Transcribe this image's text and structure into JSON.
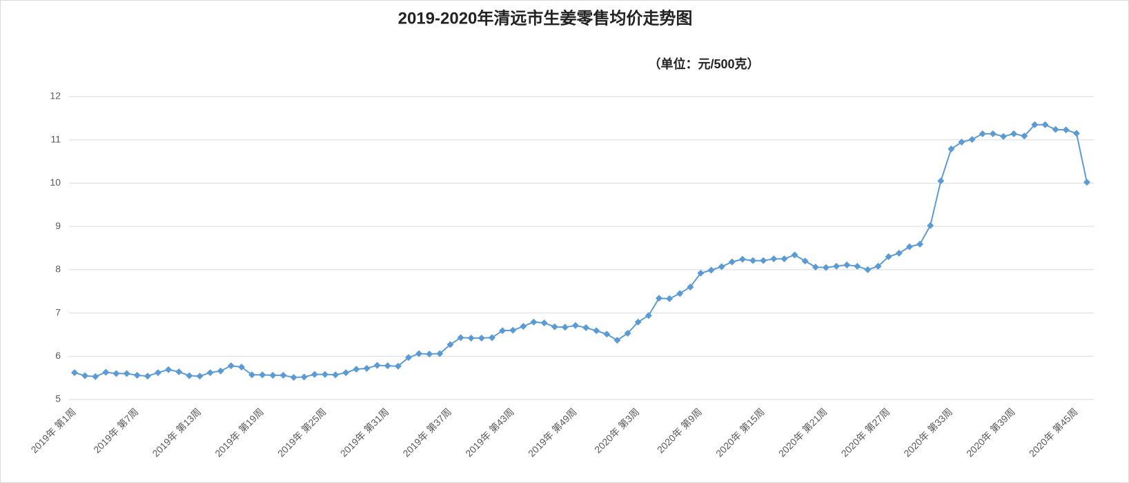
{
  "chart_data": {
    "type": "line",
    "title": "2019-2020年清远市生姜零售均价走势图",
    "subtitle": "（单位：元/500克）",
    "categories": [
      "2019年 第1周",
      null,
      null,
      null,
      null,
      null,
      "2019年 第7周",
      null,
      null,
      null,
      null,
      null,
      "2019年 第13周",
      null,
      null,
      null,
      null,
      null,
      "2019年 第19周",
      null,
      null,
      null,
      null,
      null,
      "2019年 第25周",
      null,
      null,
      null,
      null,
      null,
      "2019年 第31周",
      null,
      null,
      null,
      null,
      null,
      "2019年 第37周",
      null,
      null,
      null,
      null,
      null,
      "2019年 第43周",
      null,
      null,
      null,
      null,
      null,
      "2019年 第49周",
      null,
      null,
      null,
      null,
      null,
      "2020年 第3周",
      null,
      null,
      null,
      null,
      null,
      "2020年 第9周",
      null,
      null,
      null,
      null,
      null,
      "2020年 第15周",
      null,
      null,
      null,
      null,
      null,
      "2020年 第21周",
      null,
      null,
      null,
      null,
      null,
      "2020年 第27周",
      null,
      null,
      null,
      null,
      null,
      "2020年 第33周",
      null,
      null,
      null,
      null,
      null,
      "2020年 第39周",
      null,
      null,
      null,
      null,
      null,
      "2020年 第45周",
      null
    ],
    "series": [
      {
        "color": "#5b9bd5",
        "values": [
          5.62,
          5.55,
          5.53,
          5.63,
          5.6,
          5.6,
          5.56,
          5.54,
          5.62,
          5.69,
          5.64,
          5.55,
          5.54,
          5.62,
          5.66,
          5.78,
          5.75,
          5.57,
          5.57,
          5.56,
          5.56,
          5.51,
          5.52,
          5.58,
          5.58,
          5.57,
          5.62,
          5.7,
          5.72,
          5.79,
          5.78,
          5.77,
          5.97,
          6.06,
          6.05,
          6.06,
          6.27,
          6.43,
          6.42,
          6.42,
          6.43,
          6.59,
          6.6,
          6.69,
          6.79,
          6.77,
          6.68,
          6.67,
          6.71,
          6.66,
          6.59,
          6.51,
          6.37,
          6.53,
          6.79,
          6.94,
          7.34,
          7.33,
          7.45,
          7.6,
          7.92,
          7.99,
          8.07,
          8.18,
          8.24,
          8.21,
          8.21,
          8.25,
          8.25,
          8.34,
          8.2,
          8.06,
          8.05,
          8.08,
          8.11,
          8.08,
          8.0,
          8.08,
          8.3,
          8.38,
          8.53,
          8.59,
          9.02,
          10.05,
          10.79,
          10.95,
          11.01,
          11.14,
          11.14,
          11.08,
          11.14,
          11.09,
          11.35,
          11.35,
          11.24,
          11.23,
          11.15,
          10.02
        ]
      }
    ],
    "ylim": [
      5,
      12
    ],
    "yticks": [
      5,
      6,
      7,
      8,
      9,
      10,
      11,
      12
    ],
    "grid": true
  }
}
